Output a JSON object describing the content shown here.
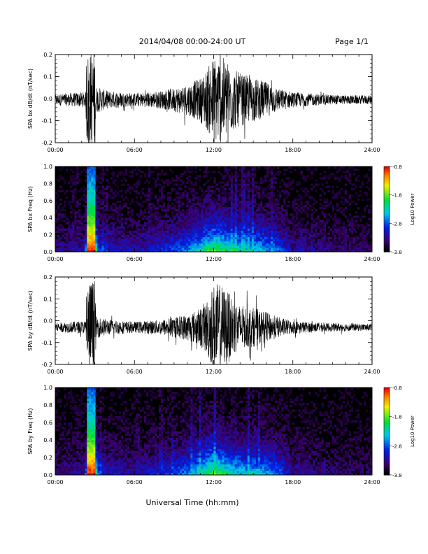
{
  "header": {
    "title": "2014/04/08   00:00-24:00 UT",
    "page": "Page 1/1"
  },
  "chart_data": [
    {
      "type": "line",
      "ylabel": "SPA bx dB/dt (nT/sec)",
      "xlim": [
        0,
        24
      ],
      "ylim": [
        -0.2,
        0.2
      ],
      "yticks": [
        "-0.2",
        "-0.1",
        "0.0",
        "0.1",
        "0.2"
      ],
      "xticks": [
        "00:00",
        "06:00",
        "12:00",
        "18:00",
        "24:00"
      ],
      "baseline": -0.005,
      "envelope": {
        "x": [
          0,
          1,
          2.3,
          2.4,
          3.0,
          3.1,
          4,
          6,
          8,
          10,
          11,
          11.5,
          12,
          12.5,
          13,
          13.5,
          14,
          15,
          16,
          17,
          18,
          20,
          22,
          24
        ],
        "amp": [
          0.025,
          0.03,
          0.035,
          0.22,
          0.22,
          0.06,
          0.04,
          0.03,
          0.04,
          0.07,
          0.1,
          0.14,
          0.2,
          0.2,
          0.18,
          0.14,
          0.12,
          0.1,
          0.08,
          0.05,
          0.035,
          0.025,
          0.02,
          0.02
        ]
      }
    },
    {
      "type": "heatmap",
      "ylabel": "SPA bx Freq (Hz)",
      "xlim": [
        0,
        24
      ],
      "ylim": [
        0,
        1.0
      ],
      "yticks": [
        "0.0",
        "0.2",
        "0.4",
        "0.6",
        "0.8",
        "1.0"
      ],
      "xticks": [
        "00:00",
        "06:00",
        "12:00",
        "18:00",
        "24:00"
      ],
      "colorbar": {
        "label": "Log10 Power",
        "range": [
          -3.8,
          -0.8
        ],
        "ticks": [
          "-0.8",
          "-1.8",
          "-2.8",
          "-3.8"
        ]
      }
    },
    {
      "type": "line",
      "ylabel": "SPA by dB/dt (nT/sec)",
      "xlim": [
        0,
        24
      ],
      "ylim": [
        -0.2,
        0.2
      ],
      "yticks": [
        "-0.2",
        "-0.1",
        "0.0",
        "0.1",
        "0.2"
      ],
      "xticks": [
        "00:00",
        "06:00",
        "12:00",
        "18:00",
        "24:00"
      ],
      "baseline": -0.03,
      "envelope": {
        "x": [
          0,
          1,
          2.3,
          2.4,
          3.0,
          3.1,
          4,
          6,
          8,
          10,
          11,
          11.5,
          12,
          12.5,
          13,
          13.5,
          14,
          15,
          16,
          17,
          18,
          20,
          22,
          24
        ],
        "amp": [
          0.02,
          0.025,
          0.03,
          0.22,
          0.22,
          0.05,
          0.035,
          0.025,
          0.035,
          0.06,
          0.09,
          0.13,
          0.2,
          0.2,
          0.17,
          0.13,
          0.1,
          0.09,
          0.07,
          0.045,
          0.03,
          0.02,
          0.018,
          0.015
        ]
      }
    },
    {
      "type": "heatmap",
      "ylabel": "SPA by Freq (Hz)",
      "xlim": [
        0,
        24
      ],
      "ylim": [
        0,
        1.0
      ],
      "yticks": [
        "0.0",
        "0.2",
        "0.4",
        "0.6",
        "0.8",
        "1.0"
      ],
      "xticks": [
        "00:00",
        "06:00",
        "12:00",
        "18:00",
        "24:00"
      ],
      "colorbar": {
        "label": "Log10 Power",
        "range": [
          -3.8,
          -0.8
        ],
        "ticks": [
          "-0.8",
          "-1.8",
          "-2.8",
          "-3.8"
        ]
      }
    }
  ],
  "footer": {
    "xlabel": "Universal Time (hh:mm)"
  }
}
